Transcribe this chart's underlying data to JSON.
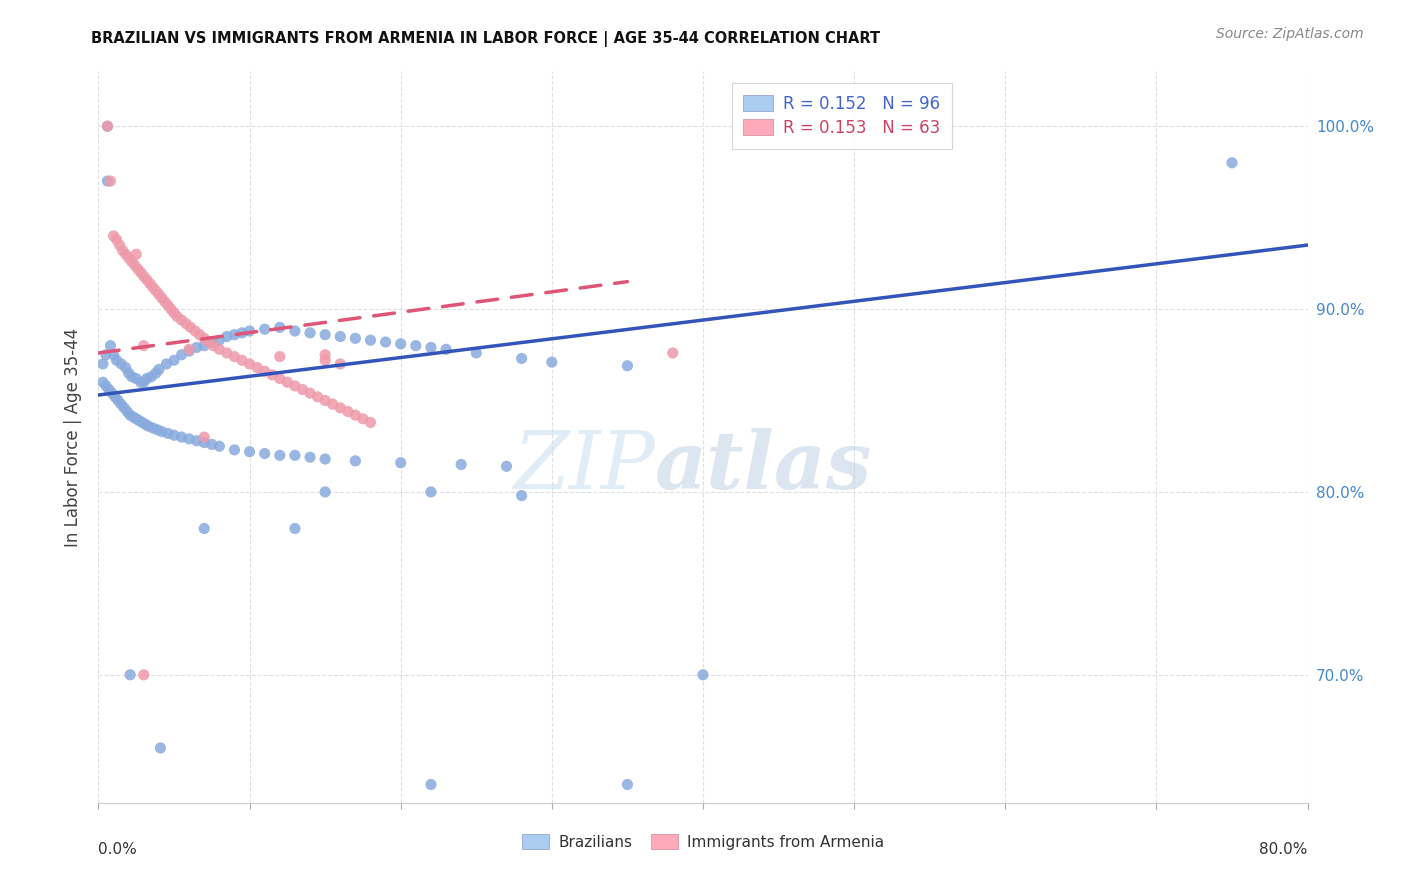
{
  "title": "BRAZILIAN VS IMMIGRANTS FROM ARMENIA IN LABOR FORCE | AGE 35-44 CORRELATION CHART",
  "source": "Source: ZipAtlas.com",
  "ylabel": "In Labor Force | Age 35-44",
  "xlim": [
    0.0,
    0.8
  ],
  "ylim": [
    0.63,
    1.03
  ],
  "ytick_vals": [
    0.7,
    0.8,
    0.9,
    1.0
  ],
  "ytick_labels": [
    "70.0%",
    "80.0%",
    "90.0%",
    "100.0%"
  ],
  "legend_r_n": [
    {
      "label": "R = 0.152   N = 96",
      "text_color": "#4466cc"
    },
    {
      "label": "R = 0.153   N = 63",
      "text_color": "#cc4466"
    }
  ],
  "legend_bottom": [
    "Brazilians",
    "Immigrants from Armenia"
  ],
  "watermark_zip": "ZIP",
  "watermark_atlas": "atlas",
  "blue_scatter_color": "#88aadd",
  "pink_scatter_color": "#ee99aa",
  "trend_blue_color": "#3355bb",
  "trend_pink_color": "#dd5577",
  "ytick_color": "#4488cc",
  "background_color": "#ffffff",
  "grid_color": "#dddddd",
  "source_color": "#888888",
  "title_color": "#111111",
  "blue_patch_color": "#aaccee",
  "pink_patch_color": "#ffaabb",
  "brazilians_x": [
    0.021,
    0.041,
    0.006,
    0.006,
    0.003,
    0.005,
    0.008,
    0.01,
    0.012,
    0.015,
    0.018,
    0.02,
    0.022,
    0.025,
    0.028,
    0.03,
    0.032,
    0.035,
    0.038,
    0.04,
    0.045,
    0.05,
    0.055,
    0.06,
    0.065,
    0.07,
    0.075,
    0.08,
    0.085,
    0.09,
    0.095,
    0.1,
    0.11,
    0.12,
    0.13,
    0.14,
    0.15,
    0.16,
    0.17,
    0.18,
    0.19,
    0.2,
    0.21,
    0.22,
    0.23,
    0.25,
    0.28,
    0.3,
    0.35,
    0.75,
    0.003,
    0.005,
    0.007,
    0.009,
    0.011,
    0.013,
    0.015,
    0.017,
    0.019,
    0.021,
    0.023,
    0.025,
    0.027,
    0.029,
    0.031,
    0.033,
    0.036,
    0.039,
    0.042,
    0.046,
    0.05,
    0.055,
    0.06,
    0.065,
    0.07,
    0.075,
    0.08,
    0.09,
    0.1,
    0.11,
    0.12,
    0.13,
    0.14,
    0.15,
    0.17,
    0.2,
    0.24,
    0.27,
    0.15,
    0.22,
    0.28,
    0.07,
    0.13,
    0.4,
    0.35,
    0.22
  ],
  "brazilians_y": [
    0.7,
    0.66,
    0.97,
    1.0,
    0.87,
    0.875,
    0.88,
    0.875,
    0.872,
    0.87,
    0.868,
    0.865,
    0.863,
    0.862,
    0.86,
    0.86,
    0.862,
    0.863,
    0.865,
    0.867,
    0.87,
    0.872,
    0.875,
    0.877,
    0.879,
    0.88,
    0.882,
    0.883,
    0.885,
    0.886,
    0.887,
    0.888,
    0.889,
    0.89,
    0.888,
    0.887,
    0.886,
    0.885,
    0.884,
    0.883,
    0.882,
    0.881,
    0.88,
    0.879,
    0.878,
    0.876,
    0.873,
    0.871,
    0.869,
    0.98,
    0.86,
    0.858,
    0.856,
    0.854,
    0.852,
    0.85,
    0.848,
    0.846,
    0.844,
    0.842,
    0.841,
    0.84,
    0.839,
    0.838,
    0.837,
    0.836,
    0.835,
    0.834,
    0.833,
    0.832,
    0.831,
    0.83,
    0.829,
    0.828,
    0.827,
    0.826,
    0.825,
    0.823,
    0.822,
    0.821,
    0.82,
    0.82,
    0.819,
    0.818,
    0.817,
    0.816,
    0.815,
    0.814,
    0.8,
    0.8,
    0.798,
    0.78,
    0.78,
    0.7,
    0.64,
    0.64
  ],
  "armenia_x": [
    0.006,
    0.008,
    0.01,
    0.012,
    0.014,
    0.016,
    0.018,
    0.02,
    0.022,
    0.024,
    0.026,
    0.028,
    0.03,
    0.032,
    0.034,
    0.036,
    0.038,
    0.04,
    0.042,
    0.044,
    0.046,
    0.048,
    0.05,
    0.052,
    0.055,
    0.058,
    0.061,
    0.064,
    0.067,
    0.07,
    0.073,
    0.076,
    0.08,
    0.085,
    0.09,
    0.095,
    0.1,
    0.105,
    0.11,
    0.115,
    0.12,
    0.125,
    0.13,
    0.135,
    0.14,
    0.145,
    0.15,
    0.155,
    0.16,
    0.165,
    0.17,
    0.175,
    0.18,
    0.03,
    0.06,
    0.38,
    0.15,
    0.12,
    0.15,
    0.16,
    0.025,
    0.03,
    0.07
  ],
  "armenia_y": [
    1.0,
    0.97,
    0.94,
    0.938,
    0.935,
    0.932,
    0.93,
    0.928,
    0.926,
    0.924,
    0.922,
    0.92,
    0.918,
    0.916,
    0.914,
    0.912,
    0.91,
    0.908,
    0.906,
    0.904,
    0.902,
    0.9,
    0.898,
    0.896,
    0.894,
    0.892,
    0.89,
    0.888,
    0.886,
    0.884,
    0.882,
    0.88,
    0.878,
    0.876,
    0.874,
    0.872,
    0.87,
    0.868,
    0.866,
    0.864,
    0.862,
    0.86,
    0.858,
    0.856,
    0.854,
    0.852,
    0.85,
    0.848,
    0.846,
    0.844,
    0.842,
    0.84,
    0.838,
    0.88,
    0.878,
    0.876,
    0.875,
    0.874,
    0.872,
    0.87,
    0.93,
    0.7,
    0.83
  ]
}
